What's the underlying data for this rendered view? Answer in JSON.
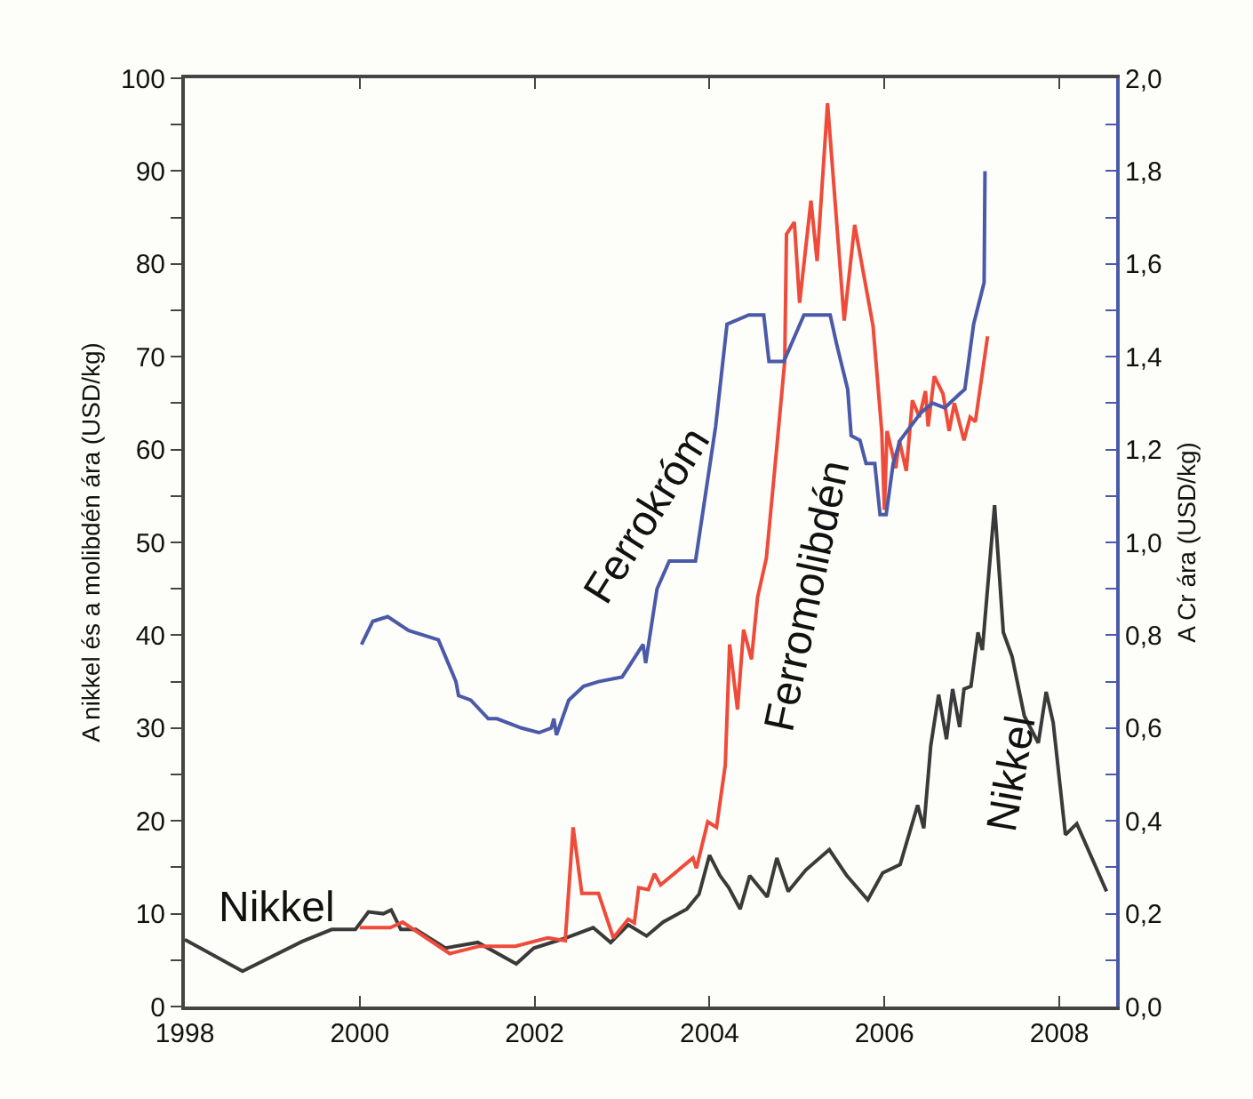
{
  "chart_data": {
    "type": "line",
    "ylabel": "A nikkel és a molibdén ára (USD/kg)",
    "y2label": "A Cr ára (USD/kg)",
    "xlim": [
      1998,
      2008.65
    ],
    "xticks": [
      1998,
      2000,
      2002,
      2004,
      2006,
      2008
    ],
    "ylim": [
      0,
      100
    ],
    "yticks": [
      0,
      {
        "value": 5,
        "label": null
      },
      10,
      {
        "value": 15,
        "label": null
      },
      20,
      {
        "value": 25,
        "label": null
      },
      30,
      {
        "value": 35,
        "label": null
      },
      40,
      {
        "value": 45,
        "label": null
      },
      50,
      {
        "value": 55,
        "label": null
      },
      60,
      {
        "value": 65,
        "label": null
      },
      70,
      {
        "value": 75,
        "label": null
      },
      80,
      {
        "value": 85,
        "label": null
      },
      90,
      {
        "value": 95,
        "label": null
      },
      100
    ],
    "y2lim": [
      0,
      2
    ],
    "y2ticks": [
      {
        "value": 0,
        "label": "0,0"
      },
      {
        "value": 0.1,
        "label": null
      },
      {
        "value": 0.2,
        "label": "0,2"
      },
      {
        "value": 0.3,
        "label": null
      },
      {
        "value": 0.4,
        "label": "0,4"
      },
      {
        "value": 0.5,
        "label": null
      },
      {
        "value": 0.6,
        "label": "0,6"
      },
      {
        "value": 0.7,
        "label": null
      },
      {
        "value": 0.8,
        "label": "0,8"
      },
      {
        "value": 0.9,
        "label": null
      },
      {
        "value": 1.0,
        "label": "1,0"
      },
      {
        "value": 1.1,
        "label": null
      },
      {
        "value": 1.2,
        "label": "1,2"
      },
      {
        "value": 1.3,
        "label": null
      },
      {
        "value": 1.4,
        "label": "1,4"
      },
      {
        "value": 1.5,
        "label": null
      },
      {
        "value": 1.6,
        "label": "1,6"
      },
      {
        "value": 1.7,
        "label": null
      },
      {
        "value": 1.8,
        "label": "1,8"
      },
      {
        "value": 1.9,
        "label": null
      },
      {
        "value": 2.0,
        "label": "2,0"
      }
    ],
    "grid": false,
    "legend": false,
    "marker": "none",
    "line_style": "solid",
    "series": [
      {
        "name": "Nikkel",
        "color": "#3a3a3a",
        "x": [
          1998.0,
          1998.66,
          1999.34,
          1999.68,
          1999.95,
          2000.1,
          2000.27,
          2000.36,
          2000.47,
          2000.64,
          2000.98,
          2001.35,
          2001.79,
          2001.99,
          2002.33,
          2002.67,
          2002.87,
          2003.07,
          2003.28,
          2003.47,
          2003.74,
          2003.88,
          2004.0,
          2004.12,
          2004.22,
          2004.35,
          2004.46,
          2004.66,
          2004.77,
          2004.9,
          2005.1,
          2005.37,
          2005.57,
          2005.81,
          2005.98,
          2006.18,
          2006.38,
          2006.45,
          2006.53,
          2006.62,
          2006.71,
          2006.78,
          2006.86,
          2006.91,
          2006.99,
          2007.07,
          2007.12,
          2007.26,
          2007.36,
          2007.46,
          2007.6,
          2007.76,
          2007.85,
          2007.93,
          2008.07,
          2008.2,
          2008.54
        ],
        "values": [
          7.2,
          3.8,
          7.0,
          8.3,
          8.3,
          10.2,
          10.0,
          10.4,
          8.3,
          8.3,
          6.3,
          6.9,
          4.6,
          6.3,
          7.3,
          8.5,
          6.9,
          8.8,
          7.6,
          9.1,
          10.5,
          12.1,
          16.3,
          14.1,
          12.8,
          10.5,
          14.1,
          11.8,
          16.0,
          12.4,
          14.7,
          16.9,
          14.1,
          11.5,
          14.4,
          15.3,
          21.7,
          19.2,
          28.1,
          33.6,
          28.8,
          34.2,
          30.1,
          34.2,
          34.5,
          40.3,
          38.4,
          54.0,
          40.3,
          37.7,
          31.3,
          28.4,
          33.9,
          30.6,
          18.5,
          19.7,
          12.4
        ]
      },
      {
        "name": "Ferromolibdén",
        "color": "#ee4b3b",
        "x": [
          2000.0,
          2000.35,
          2000.49,
          2001.03,
          2001.37,
          2001.78,
          2002.15,
          2002.35,
          2002.44,
          2002.54,
          2002.73,
          2002.9,
          2003.07,
          2003.14,
          2003.19,
          2003.3,
          2003.37,
          2003.44,
          2003.81,
          2003.85,
          2003.98,
          2004.08,
          2004.18,
          2004.23,
          2004.32,
          2004.39,
          2004.48,
          2004.55,
          2004.65,
          2004.76,
          2004.86,
          2004.88,
          2004.97,
          2005.03,
          2005.16,
          2005.23,
          2005.35,
          2005.54,
          2005.66,
          2005.87,
          2005.97,
          2006.0,
          2006.03,
          2006.13,
          2006.17,
          2006.25,
          2006.32,
          2006.4,
          2006.47,
          2006.5,
          2006.57,
          2006.67,
          2006.74,
          2006.8,
          2006.91,
          2006.98,
          2007.04,
          2007.18
        ],
        "values": [
          8.5,
          8.5,
          9.1,
          5.7,
          6.5,
          6.5,
          7.4,
          7.1,
          19.3,
          12.2,
          12.2,
          7.4,
          9.4,
          9.0,
          12.8,
          12.6,
          14.3,
          13.1,
          16.0,
          14.9,
          19.9,
          19.3,
          26.0,
          39.0,
          32.0,
          40.6,
          37.4,
          44.1,
          48.3,
          59.3,
          69.5,
          83.2,
          84.5,
          75.8,
          86.8,
          80.3,
          97.3,
          73.9,
          84.2,
          73.3,
          61.9,
          53.5,
          62.0,
          58.0,
          61.0,
          57.7,
          65.3,
          63.5,
          66.3,
          62.5,
          67.9,
          66.0,
          62.0,
          65.0,
          61.0,
          63.5,
          63.0,
          72.2
        ]
      },
      {
        "name": "Ferrokróm",
        "color": "#4a5aa8",
        "axis": "y2",
        "x": [
          2000.02,
          2000.15,
          2000.32,
          2000.56,
          2000.73,
          2000.9,
          2001.1,
          2001.13,
          2001.27,
          2001.47,
          2001.57,
          2001.85,
          2002.05,
          2002.19,
          2002.22,
          2002.25,
          2002.39,
          2002.56,
          2002.73,
          2003.0,
          2003.24,
          2003.27,
          2003.4,
          2003.54,
          2003.84,
          2004.07,
          2004.2,
          2004.45,
          2004.62,
          2004.68,
          2004.85,
          2005.08,
          2005.38,
          2005.45,
          2005.58,
          2005.62,
          2005.72,
          2005.79,
          2005.89,
          2005.95,
          2006.02,
          2006.1,
          2006.18,
          2006.42,
          2006.55,
          2006.69,
          2006.86,
          2006.92,
          2007.02,
          2007.14,
          2007.15
        ],
        "values": [
          0.78,
          0.83,
          0.84,
          0.81,
          0.8,
          0.79,
          0.7,
          0.67,
          0.66,
          0.62,
          0.62,
          0.6,
          0.59,
          0.6,
          0.62,
          0.585,
          0.66,
          0.69,
          0.7,
          0.71,
          0.78,
          0.74,
          0.9,
          0.96,
          0.96,
          1.25,
          1.47,
          1.49,
          1.49,
          1.39,
          1.39,
          1.49,
          1.49,
          1.43,
          1.33,
          1.23,
          1.22,
          1.17,
          1.17,
          1.06,
          1.06,
          1.17,
          1.22,
          1.28,
          1.3,
          1.29,
          1.32,
          1.33,
          1.47,
          1.56,
          1.8
        ]
      }
    ]
  }
}
